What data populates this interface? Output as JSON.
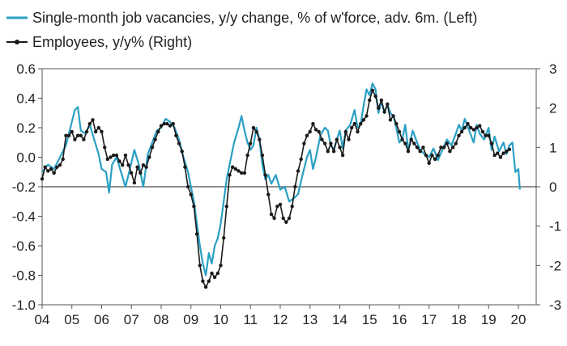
{
  "chart_data": {
    "type": "line",
    "title": "",
    "xlabel": "",
    "ylabel_left": "",
    "ylabel_right": "",
    "x_tick_labels": [
      "04",
      "05",
      "06",
      "07",
      "08",
      "09",
      "10",
      "11",
      "12",
      "13",
      "14",
      "15",
      "16",
      "17",
      "18",
      "19",
      "20"
    ],
    "x_range": [
      2004.0,
      2020.6
    ],
    "left_axis": {
      "range": [
        -1.0,
        0.6
      ],
      "ticks": [
        0.6,
        0.4,
        0.2,
        0.0,
        -0.2,
        -0.4,
        -0.6,
        -0.8,
        -1.0
      ],
      "tick_labels": [
        "0.6",
        "0.4",
        "0.2",
        "0.0",
        "-0.2",
        "-0.4",
        "-0.6",
        "-0.8",
        "-1.0"
      ]
    },
    "right_axis": {
      "range": [
        -3,
        3
      ],
      "ticks": [
        3,
        2,
        1,
        0,
        -1,
        -2,
        -3
      ],
      "tick_labels": [
        "3",
        "2",
        "1",
        "0",
        "-1",
        "-2",
        "-3"
      ]
    },
    "zero_line": true,
    "grid": false,
    "legend_position": "top-left",
    "series": [
      {
        "name": "Single-month job vacancies, y/y change, % of w'force, adv. 6m. (Left)",
        "axis": "left",
        "color": "#2a9fc4",
        "marker": "none",
        "points": [
          [
            2004.0,
            -0.1
          ],
          [
            2004.2,
            -0.05
          ],
          [
            2004.4,
            -0.08
          ],
          [
            2004.6,
            0.0
          ],
          [
            2004.8,
            0.08
          ],
          [
            2004.95,
            0.2
          ],
          [
            2005.1,
            0.32
          ],
          [
            2005.2,
            0.34
          ],
          [
            2005.3,
            0.18
          ],
          [
            2005.45,
            0.16
          ],
          [
            2005.6,
            0.22
          ],
          [
            2005.75,
            0.12
          ],
          [
            2005.9,
            0.02
          ],
          [
            2006.0,
            -0.08
          ],
          [
            2006.15,
            -0.1
          ],
          [
            2006.25,
            -0.24
          ],
          [
            2006.35,
            -0.05
          ],
          [
            2006.5,
            0.0
          ],
          [
            2006.65,
            -0.1
          ],
          [
            2006.8,
            -0.2
          ],
          [
            2006.95,
            -0.08
          ],
          [
            2007.1,
            0.05
          ],
          [
            2007.25,
            -0.05
          ],
          [
            2007.4,
            -0.2
          ],
          [
            2007.55,
            0.02
          ],
          [
            2007.7,
            0.1
          ],
          [
            2007.85,
            0.18
          ],
          [
            2008.0,
            0.2
          ],
          [
            2008.15,
            0.26
          ],
          [
            2008.3,
            0.24
          ],
          [
            2008.45,
            0.2
          ],
          [
            2008.6,
            0.12
          ],
          [
            2008.75,
            0.0
          ],
          [
            2008.9,
            -0.1
          ],
          [
            2009.0,
            -0.2
          ],
          [
            2009.1,
            -0.3
          ],
          [
            2009.2,
            -0.45
          ],
          [
            2009.3,
            -0.6
          ],
          [
            2009.4,
            -0.72
          ],
          [
            2009.5,
            -0.8
          ],
          [
            2009.6,
            -0.65
          ],
          [
            2009.7,
            -0.72
          ],
          [
            2009.8,
            -0.6
          ],
          [
            2009.9,
            -0.55
          ],
          [
            2010.0,
            -0.45
          ],
          [
            2010.1,
            -0.3
          ],
          [
            2010.2,
            -0.15
          ],
          [
            2010.3,
            -0.05
          ],
          [
            2010.45,
            0.1
          ],
          [
            2010.6,
            0.2
          ],
          [
            2010.7,
            0.28
          ],
          [
            2010.8,
            0.18
          ],
          [
            2010.9,
            0.1
          ],
          [
            2011.0,
            0.05
          ],
          [
            2011.1,
            0.08
          ],
          [
            2011.2,
            0.2
          ],
          [
            2011.3,
            0.12
          ],
          [
            2011.4,
            -0.05
          ],
          [
            2011.5,
            -0.15
          ],
          [
            2011.6,
            -0.12
          ],
          [
            2011.7,
            -0.18
          ],
          [
            2011.85,
            -0.12
          ],
          [
            2012.0,
            -0.22
          ],
          [
            2012.15,
            -0.2
          ],
          [
            2012.3,
            -0.3
          ],
          [
            2012.45,
            -0.28
          ],
          [
            2012.6,
            -0.25
          ],
          [
            2012.75,
            -0.12
          ],
          [
            2012.9,
            0.0
          ],
          [
            2013.0,
            0.05
          ],
          [
            2013.1,
            -0.08
          ],
          [
            2013.2,
            0.0
          ],
          [
            2013.35,
            0.15
          ],
          [
            2013.5,
            0.2
          ],
          [
            2013.6,
            0.18
          ],
          [
            2013.7,
            0.08
          ],
          [
            2013.8,
            0.05
          ],
          [
            2013.9,
            0.12
          ],
          [
            2014.0,
            0.18
          ],
          [
            2014.1,
            0.06
          ],
          [
            2014.2,
            0.18
          ],
          [
            2014.35,
            0.22
          ],
          [
            2014.5,
            0.32
          ],
          [
            2014.6,
            0.2
          ],
          [
            2014.7,
            0.22
          ],
          [
            2014.8,
            0.35
          ],
          [
            2014.9,
            0.46
          ],
          [
            2015.0,
            0.42
          ],
          [
            2015.1,
            0.5
          ],
          [
            2015.2,
            0.46
          ],
          [
            2015.3,
            0.3
          ],
          [
            2015.4,
            0.38
          ],
          [
            2015.5,
            0.3
          ],
          [
            2015.6,
            0.36
          ],
          [
            2015.7,
            0.3
          ],
          [
            2015.8,
            0.28
          ],
          [
            2015.9,
            0.2
          ],
          [
            2016.0,
            0.1
          ],
          [
            2016.1,
            0.12
          ],
          [
            2016.2,
            0.22
          ],
          [
            2016.3,
            0.05
          ],
          [
            2016.45,
            0.18
          ],
          [
            2016.6,
            0.1
          ],
          [
            2016.7,
            0.05
          ],
          [
            2016.85,
            0.02
          ],
          [
            2017.0,
            0.0
          ],
          [
            2017.15,
            0.06
          ],
          [
            2017.3,
            -0.02
          ],
          [
            2017.45,
            0.05
          ],
          [
            2017.6,
            0.12
          ],
          [
            2017.75,
            0.08
          ],
          [
            2017.9,
            0.16
          ],
          [
            2018.0,
            0.22
          ],
          [
            2018.1,
            0.18
          ],
          [
            2018.2,
            0.26
          ],
          [
            2018.35,
            0.18
          ],
          [
            2018.5,
            0.1
          ],
          [
            2018.6,
            0.22
          ],
          [
            2018.7,
            0.16
          ],
          [
            2018.85,
            0.12
          ],
          [
            2019.0,
            0.2
          ],
          [
            2019.1,
            0.05
          ],
          [
            2019.2,
            0.14
          ],
          [
            2019.35,
            0.04
          ],
          [
            2019.5,
            0.1
          ],
          [
            2019.6,
            0.02
          ],
          [
            2019.7,
            0.08
          ],
          [
            2019.8,
            0.1
          ],
          [
            2019.9,
            -0.1
          ],
          [
            2020.0,
            -0.08
          ],
          [
            2020.05,
            -0.22
          ]
        ]
      },
      {
        "name": "Employees, y/y% (Right)",
        "axis": "right",
        "color": "#1a1a1a",
        "marker": "dot",
        "points": [
          [
            2004.0,
            0.2
          ],
          [
            2004.1,
            0.5
          ],
          [
            2004.2,
            0.4
          ],
          [
            2004.3,
            0.45
          ],
          [
            2004.4,
            0.35
          ],
          [
            2004.5,
            0.5
          ],
          [
            2004.6,
            0.55
          ],
          [
            2004.7,
            0.7
          ],
          [
            2004.8,
            1.3
          ],
          [
            2004.9,
            1.3
          ],
          [
            2005.0,
            1.4
          ],
          [
            2005.1,
            1.2
          ],
          [
            2005.2,
            1.3
          ],
          [
            2005.3,
            1.3
          ],
          [
            2005.4,
            1.2
          ],
          [
            2005.5,
            1.4
          ],
          [
            2005.6,
            1.6
          ],
          [
            2005.7,
            1.7
          ],
          [
            2005.8,
            1.4
          ],
          [
            2005.9,
            1.5
          ],
          [
            2006.0,
            1.4
          ],
          [
            2006.1,
            1.0
          ],
          [
            2006.2,
            0.7
          ],
          [
            2006.3,
            0.75
          ],
          [
            2006.4,
            0.8
          ],
          [
            2006.5,
            0.8
          ],
          [
            2006.6,
            0.65
          ],
          [
            2006.7,
            0.55
          ],
          [
            2006.8,
            0.8
          ],
          [
            2006.9,
            0.55
          ],
          [
            2007.0,
            0.35
          ],
          [
            2007.1,
            0.1
          ],
          [
            2007.2,
            0.5
          ],
          [
            2007.3,
            0.35
          ],
          [
            2007.4,
            0.55
          ],
          [
            2007.5,
            0.5
          ],
          [
            2007.6,
            0.75
          ],
          [
            2007.7,
            1.0
          ],
          [
            2007.8,
            1.2
          ],
          [
            2007.9,
            1.4
          ],
          [
            2008.0,
            1.55
          ],
          [
            2008.1,
            1.6
          ],
          [
            2008.2,
            1.6
          ],
          [
            2008.3,
            1.55
          ],
          [
            2008.4,
            1.6
          ],
          [
            2008.5,
            1.3
          ],
          [
            2008.6,
            1.1
          ],
          [
            2008.7,
            0.9
          ],
          [
            2008.8,
            0.5
          ],
          [
            2008.9,
            0.0
          ],
          [
            2009.0,
            -0.2
          ],
          [
            2009.1,
            -0.5
          ],
          [
            2009.2,
            -1.2
          ],
          [
            2009.3,
            -2.0
          ],
          [
            2009.4,
            -2.4
          ],
          [
            2009.5,
            -2.55
          ],
          [
            2009.6,
            -2.4
          ],
          [
            2009.7,
            -2.2
          ],
          [
            2009.8,
            -2.3
          ],
          [
            2009.9,
            -2.2
          ],
          [
            2010.0,
            -2.0
          ],
          [
            2010.1,
            -1.3
          ],
          [
            2010.2,
            -0.5
          ],
          [
            2010.3,
            0.3
          ],
          [
            2010.4,
            0.5
          ],
          [
            2010.5,
            0.45
          ],
          [
            2010.6,
            0.4
          ],
          [
            2010.7,
            0.35
          ],
          [
            2010.8,
            0.35
          ],
          [
            2010.9,
            0.8
          ],
          [
            2011.0,
            1.1
          ],
          [
            2011.1,
            1.5
          ],
          [
            2011.2,
            1.4
          ],
          [
            2011.3,
            1.2
          ],
          [
            2011.4,
            0.8
          ],
          [
            2011.5,
            0.3
          ],
          [
            2011.6,
            -0.2
          ],
          [
            2011.7,
            -0.7
          ],
          [
            2011.8,
            -0.8
          ],
          [
            2011.9,
            -0.5
          ],
          [
            2012.0,
            -0.45
          ],
          [
            2012.1,
            -0.8
          ],
          [
            2012.2,
            -0.9
          ],
          [
            2012.3,
            -0.8
          ],
          [
            2012.4,
            -0.5
          ],
          [
            2012.5,
            0.0
          ],
          [
            2012.6,
            0.4
          ],
          [
            2012.7,
            0.7
          ],
          [
            2012.8,
            1.1
          ],
          [
            2012.9,
            1.3
          ],
          [
            2013.0,
            1.4
          ],
          [
            2013.1,
            1.6
          ],
          [
            2013.2,
            1.45
          ],
          [
            2013.3,
            1.4
          ],
          [
            2013.4,
            1.2
          ],
          [
            2013.5,
            1.1
          ],
          [
            2013.6,
            0.9
          ],
          [
            2013.7,
            1.1
          ],
          [
            2013.8,
            0.9
          ],
          [
            2013.9,
            1.2
          ],
          [
            2014.0,
            1.0
          ],
          [
            2014.1,
            0.8
          ],
          [
            2014.2,
            1.4
          ],
          [
            2014.3,
            1.2
          ],
          [
            2014.4,
            1.5
          ],
          [
            2014.5,
            1.6
          ],
          [
            2014.6,
            1.4
          ],
          [
            2014.7,
            1.6
          ],
          [
            2014.8,
            1.7
          ],
          [
            2014.9,
            1.8
          ],
          [
            2015.0,
            2.2
          ],
          [
            2015.1,
            2.45
          ],
          [
            2015.2,
            2.3
          ],
          [
            2015.3,
            2.0
          ],
          [
            2015.4,
            2.2
          ],
          [
            2015.5,
            1.9
          ],
          [
            2015.6,
            2.1
          ],
          [
            2015.7,
            1.7
          ],
          [
            2015.8,
            1.8
          ],
          [
            2015.9,
            1.6
          ],
          [
            2016.0,
            1.4
          ],
          [
            2016.1,
            1.2
          ],
          [
            2016.2,
            1.1
          ],
          [
            2016.3,
            0.9
          ],
          [
            2016.4,
            1.2
          ],
          [
            2016.5,
            1.1
          ],
          [
            2016.6,
            1.0
          ],
          [
            2016.7,
            0.9
          ],
          [
            2016.8,
            1.0
          ],
          [
            2016.9,
            0.8
          ],
          [
            2017.0,
            0.6
          ],
          [
            2017.1,
            0.8
          ],
          [
            2017.2,
            0.7
          ],
          [
            2017.3,
            0.8
          ],
          [
            2017.4,
            1.0
          ],
          [
            2017.5,
            1.0
          ],
          [
            2017.6,
            1.1
          ],
          [
            2017.7,
            0.9
          ],
          [
            2017.8,
            1.0
          ],
          [
            2017.9,
            1.1
          ],
          [
            2018.0,
            1.3
          ],
          [
            2018.1,
            1.4
          ],
          [
            2018.2,
            1.5
          ],
          [
            2018.3,
            1.6
          ],
          [
            2018.4,
            1.5
          ],
          [
            2018.5,
            1.45
          ],
          [
            2018.6,
            1.5
          ],
          [
            2018.7,
            1.55
          ],
          [
            2018.8,
            1.4
          ],
          [
            2018.9,
            1.3
          ],
          [
            2019.0,
            1.3
          ],
          [
            2019.1,
            1.1
          ],
          [
            2019.2,
            0.8
          ],
          [
            2019.3,
            0.85
          ],
          [
            2019.4,
            0.75
          ],
          [
            2019.5,
            0.85
          ],
          [
            2019.6,
            0.9
          ],
          [
            2019.7,
            0.95
          ]
        ]
      }
    ]
  }
}
